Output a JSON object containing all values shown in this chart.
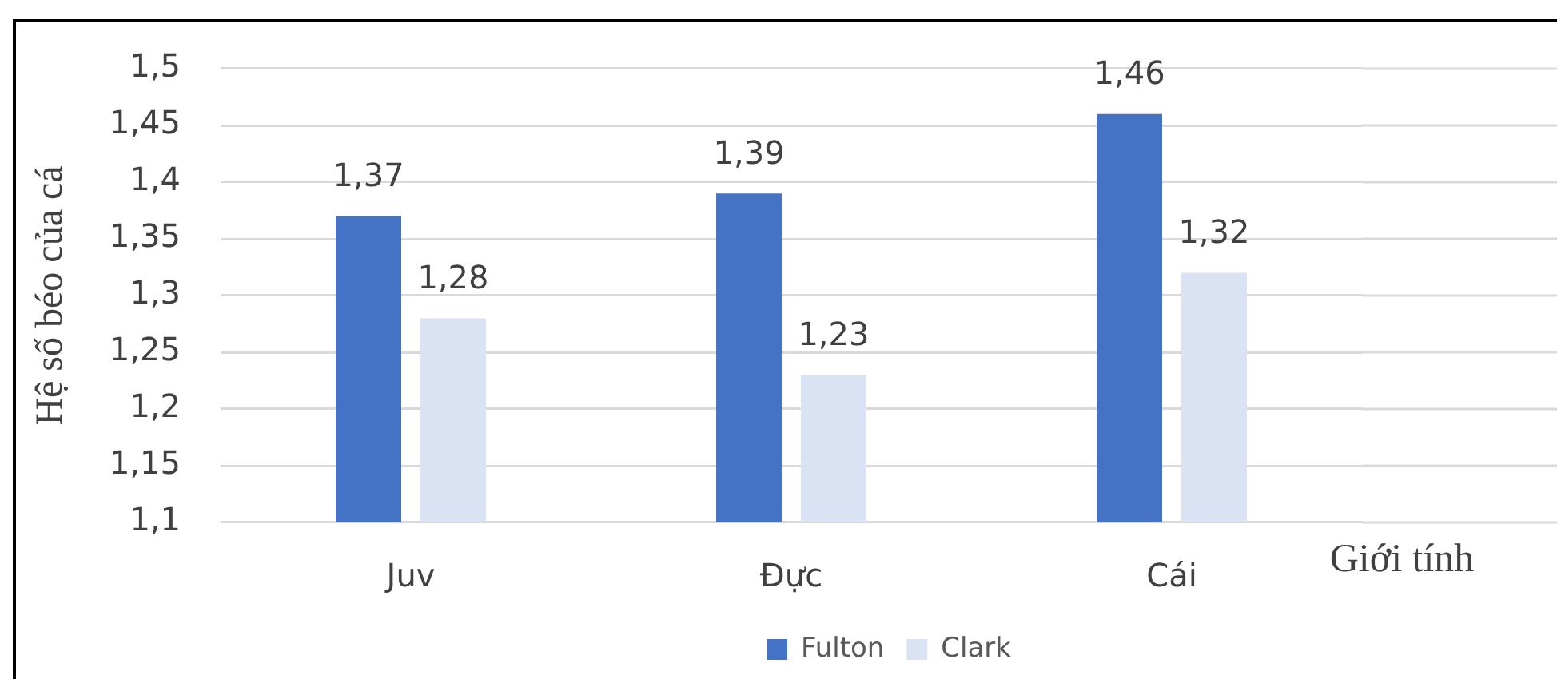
{
  "chart_data": {
    "type": "bar",
    "ylabel": "Hệ số béo của cá",
    "xlabel": "Giới tính",
    "categories": [
      "Juv",
      "Đực",
      "Cái"
    ],
    "series": [
      {
        "name": "Fulton",
        "color": "#4472c4",
        "values": [
          1.37,
          1.39,
          1.46
        ],
        "value_labels": [
          "1,37",
          "1,39",
          "1,46"
        ]
      },
      {
        "name": "Clark",
        "color": "#dae3f3",
        "values": [
          1.28,
          1.23,
          1.32
        ],
        "value_labels": [
          "1,28",
          "1,23",
          "1,32"
        ]
      }
    ],
    "ylim": [
      1.1,
      1.5
    ],
    "yticks": [
      {
        "value": 1.1,
        "label": "1,1"
      },
      {
        "value": 1.15,
        "label": "1,15"
      },
      {
        "value": 1.2,
        "label": "1,2"
      },
      {
        "value": 1.25,
        "label": "1,25"
      },
      {
        "value": 1.3,
        "label": "1,3"
      },
      {
        "value": 1.35,
        "label": "1,35"
      },
      {
        "value": 1.4,
        "label": "1,4"
      },
      {
        "value": 1.45,
        "label": "1,45"
      },
      {
        "value": 1.5,
        "label": "1,5"
      }
    ],
    "grid": "y",
    "legend": "bottom"
  }
}
